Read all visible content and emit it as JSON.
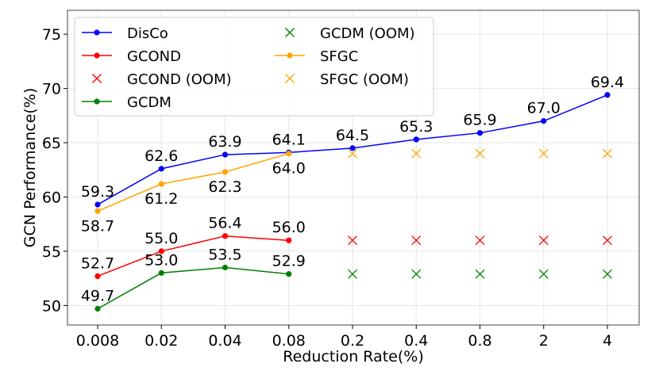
{
  "chart_data": {
    "type": "line",
    "title": "",
    "xlabel": "Reduction Rate(%)",
    "ylabel": "GCN Performance(%)",
    "categories": [
      "0.008",
      "0.02",
      "0.04",
      "0.08",
      "0.2",
      "0.4",
      "0.8",
      "2",
      "4"
    ],
    "ylim": [
      48.2,
      77.2
    ],
    "yticks": [
      50,
      55,
      60,
      65,
      70,
      75
    ],
    "grid": true,
    "legend_position": "top-left",
    "series": [
      {
        "name": "DisCo",
        "color": "#0000ff",
        "kind": "line",
        "values": [
          59.3,
          62.6,
          63.9,
          64.1,
          64.5,
          65.3,
          65.9,
          67.0,
          69.4
        ],
        "labels": [
          "59.3",
          "62.6",
          "63.9",
          "64.1",
          "64.5",
          "65.3",
          "65.9",
          "67.0",
          "69.4"
        ]
      },
      {
        "name": "GCOND",
        "color": "#ff0000",
        "kind": "line",
        "values": [
          52.7,
          55.0,
          56.4,
          56.0,
          null,
          null,
          null,
          null,
          null
        ],
        "labels": [
          "52.7",
          "55.0",
          "56.4",
          "56.0",
          null,
          null,
          null,
          null,
          null
        ]
      },
      {
        "name": "GCOND (OOM)",
        "color": "#ff0000",
        "kind": "marker",
        "values": [
          null,
          null,
          null,
          null,
          56.0,
          56.0,
          56.0,
          56.0,
          56.0
        ]
      },
      {
        "name": "GCDM",
        "color": "#008000",
        "kind": "line",
        "values": [
          49.7,
          53.0,
          53.5,
          52.9,
          null,
          null,
          null,
          null,
          null
        ],
        "labels": [
          "49.7",
          "53.0",
          "53.5",
          "52.9",
          null,
          null,
          null,
          null,
          null
        ]
      },
      {
        "name": "GCDM (OOM)",
        "color": "#008000",
        "kind": "marker",
        "values": [
          null,
          null,
          null,
          null,
          52.9,
          52.9,
          52.9,
          52.9,
          52.9
        ]
      },
      {
        "name": "SFGC",
        "color": "#ffa500",
        "kind": "line",
        "values": [
          58.7,
          61.2,
          62.3,
          64.0,
          null,
          null,
          null,
          null,
          null
        ],
        "labels": [
          "58.7",
          "61.2",
          "62.3",
          "64.0",
          null,
          null,
          null,
          null,
          null
        ]
      },
      {
        "name": "SFGC (OOM)",
        "color": "#ffa500",
        "kind": "marker",
        "values": [
          null,
          null,
          null,
          null,
          64.0,
          64.0,
          64.0,
          64.0,
          64.0
        ]
      }
    ]
  }
}
